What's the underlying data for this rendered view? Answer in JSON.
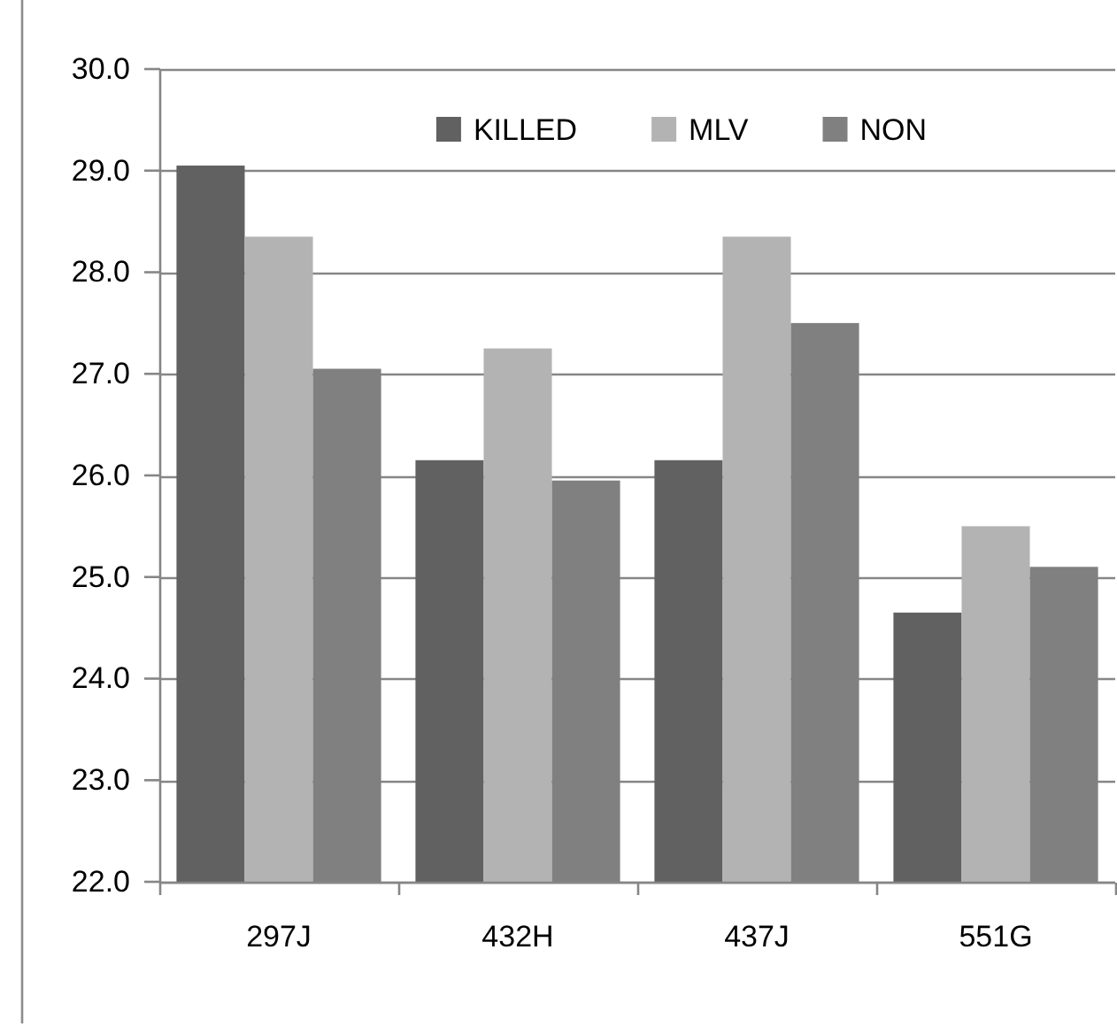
{
  "chart_data": {
    "type": "bar",
    "categories": [
      "297J",
      "432H",
      "437J",
      "551G"
    ],
    "series": [
      {
        "name": "KILLED",
        "color": "#616161",
        "values": [
          29.05,
          26.15,
          26.15,
          24.65
        ]
      },
      {
        "name": "MLV",
        "color": "#b3b3b3",
        "values": [
          28.35,
          27.25,
          28.35,
          25.5
        ]
      },
      {
        "name": "NON",
        "color": "#808080",
        "values": [
          27.05,
          25.95,
          27.5,
          25.1
        ]
      }
    ],
    "ylim": [
      22,
      30
    ],
    "yticks": [
      {
        "value": 22,
        "label": "22.0"
      },
      {
        "value": 23,
        "label": "23.0"
      },
      {
        "value": 24,
        "label": "24.0"
      },
      {
        "value": 25,
        "label": "25.0"
      },
      {
        "value": 26,
        "label": "26.0"
      },
      {
        "value": 27,
        "label": "27.0"
      },
      {
        "value": 28,
        "label": "28.0"
      },
      {
        "value": 29,
        "label": "29.0"
      },
      {
        "value": 30,
        "label": "30.0"
      }
    ],
    "grid": "y",
    "legend": "top"
  }
}
